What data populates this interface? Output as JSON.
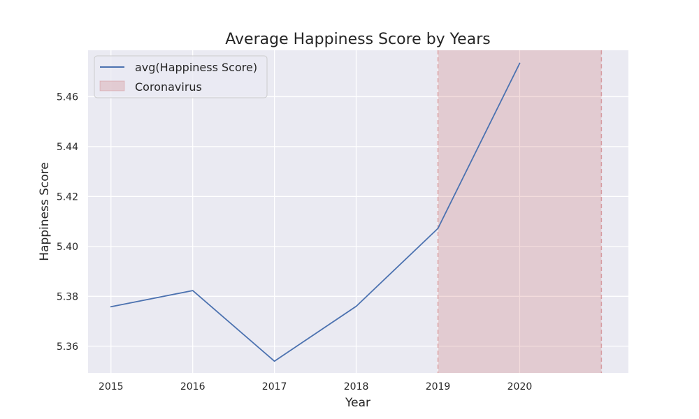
{
  "chart_data": {
    "type": "line",
    "title": "Average Happiness Score by Years",
    "xlabel": "Year",
    "ylabel": "Happiness Score",
    "xlim": [
      2014.72,
      2021.33
    ],
    "ylim": [
      5.3493,
      5.4786
    ],
    "x_ticks": [
      2015,
      2016,
      2017,
      2018,
      2019,
      2020
    ],
    "y_ticks": [
      5.36,
      5.38,
      5.4,
      5.42,
      5.44,
      5.46
    ],
    "y_tick_labels": [
      "5.36",
      "5.38",
      "5.40",
      "5.42",
      "5.44",
      "5.46"
    ],
    "x": [
      2015,
      2016,
      2017,
      2018,
      2019,
      2020
    ],
    "series": [
      {
        "name": "avg(Happiness Score)",
        "color": "#4c72b0",
        "values": [
          5.3758,
          5.3823,
          5.354,
          5.376,
          5.4072,
          5.4734
        ]
      }
    ],
    "spans": [
      {
        "name": "Coronavirus",
        "x_start": 2019,
        "x_end": 2021,
        "color": "#c44e52"
      }
    ],
    "grid": true,
    "legend_position": "top-left",
    "background_color": "#eaeaf2"
  }
}
